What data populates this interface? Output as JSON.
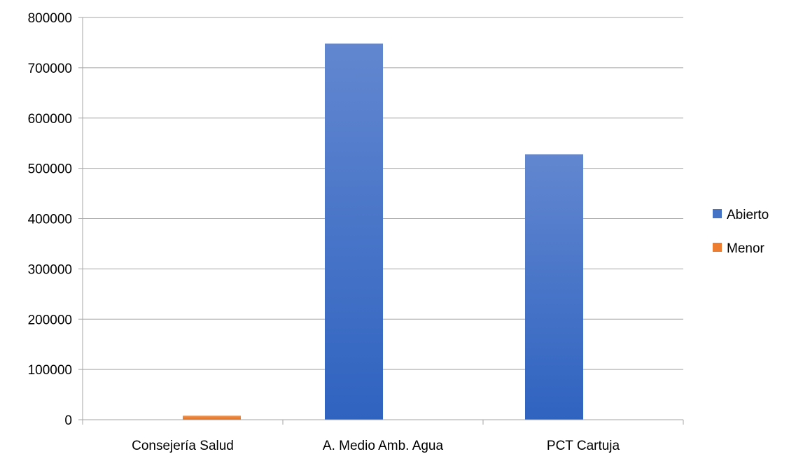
{
  "chart_data": {
    "type": "bar",
    "categories": [
      "Consejería Salud",
      "A. Medio Amb. Agua",
      "PCT Cartuja"
    ],
    "series": [
      {
        "name": "Abierto",
        "values": [
          0,
          748000,
          528000
        ],
        "color": "#4472C4"
      },
      {
        "name": "Menor",
        "values": [
          8000,
          0,
          0
        ],
        "color": "#ED7D31"
      }
    ],
    "ylim": [
      0,
      800000
    ],
    "yticks": [
      0,
      100000,
      200000,
      300000,
      400000,
      500000,
      600000,
      700000,
      800000
    ],
    "grid": true,
    "legend_position": "right",
    "title": "",
    "xlabel": "",
    "ylabel": ""
  }
}
